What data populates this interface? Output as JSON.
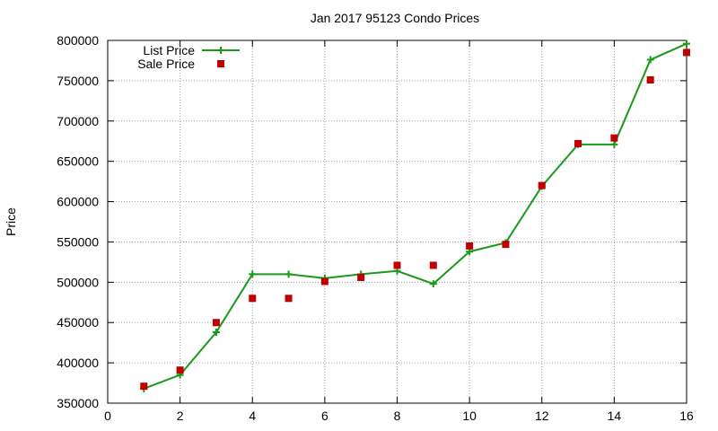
{
  "chart_data": {
    "type": "line",
    "title": "Jan 2017 95123 Condo Prices",
    "xlabel": "",
    "ylabel": "Price",
    "xlim": [
      0,
      16
    ],
    "ylim": [
      350000,
      800000
    ],
    "x_ticks": [
      0,
      2,
      4,
      6,
      8,
      10,
      12,
      14,
      16
    ],
    "y_ticks": [
      350000,
      400000,
      450000,
      500000,
      550000,
      600000,
      650000,
      700000,
      750000,
      800000
    ],
    "grid": true,
    "legend_position": "top-left",
    "series": [
      {
        "name": "List Price",
        "style": "line-with-plus-markers",
        "color": "#1a9a1a",
        "x": [
          1,
          2,
          3,
          4,
          5,
          6,
          7,
          8,
          9,
          10,
          11,
          12,
          13,
          14,
          15,
          16
        ],
        "values": [
          368000,
          385000,
          438000,
          510000,
          510000,
          505000,
          510000,
          514000,
          498000,
          538000,
          549000,
          619000,
          671000,
          671000,
          776000,
          796000
        ]
      },
      {
        "name": "Sale Price",
        "style": "square-markers",
        "color": "#c00000",
        "x": [
          1,
          2,
          3,
          4,
          5,
          6,
          7,
          8,
          9,
          10,
          11,
          12,
          13,
          14,
          15,
          16
        ],
        "values": [
          371000,
          391000,
          450000,
          480000,
          480000,
          501000,
          506000,
          521000,
          521000,
          545000,
          547000,
          620000,
          672000,
          679000,
          751000,
          785000
        ]
      }
    ]
  }
}
